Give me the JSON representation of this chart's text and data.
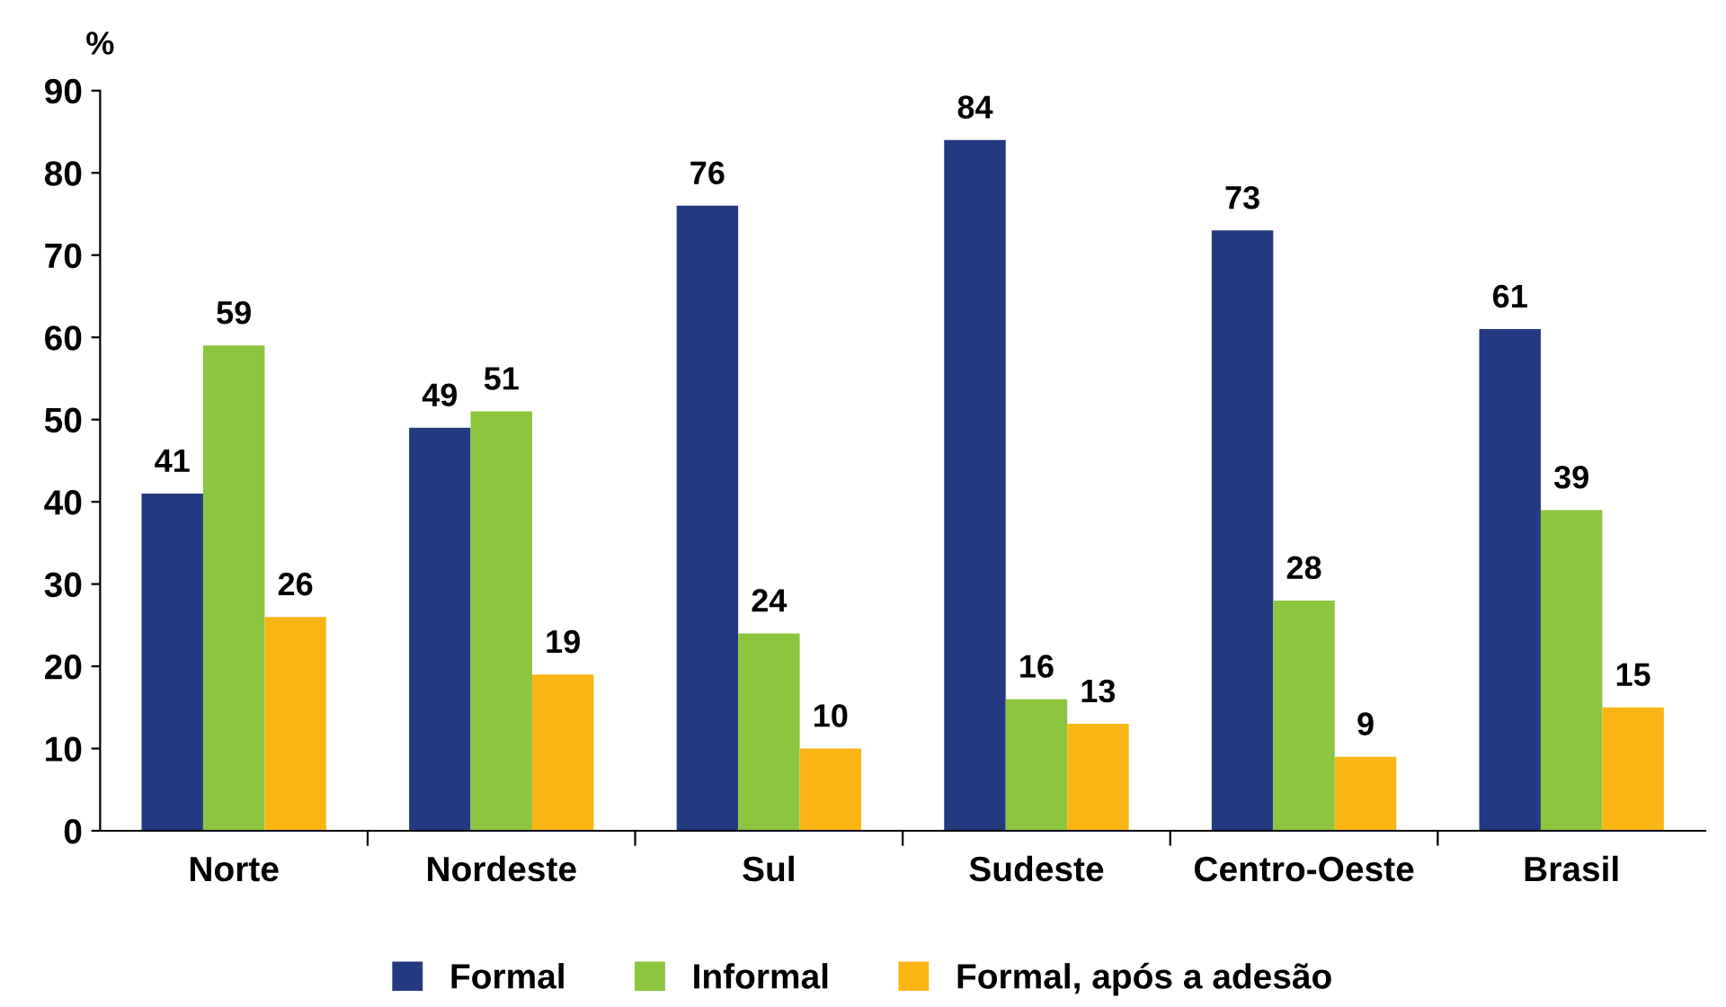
{
  "chart_data": {
    "type": "bar",
    "ylabel": "%",
    "categories": [
      "Norte",
      "Nordeste",
      "Sul",
      "Sudeste",
      "Centro-Oeste",
      "Brasil"
    ],
    "series": [
      {
        "name": "Formal",
        "color": "#233a80",
        "values": [
          41,
          49,
          76,
          84,
          73,
          61
        ]
      },
      {
        "name": "Informal",
        "color": "#8cc63f",
        "values": [
          59,
          51,
          24,
          16,
          28,
          39
        ]
      },
      {
        "name": "Formal, após a adesão",
        "color": "#fbb615",
        "values": [
          26,
          19,
          10,
          13,
          9,
          15
        ]
      }
    ],
    "ylim": [
      0,
      90
    ],
    "yticks": [
      0,
      10,
      20,
      30,
      40,
      50,
      60,
      70,
      80,
      90
    ],
    "grid": false,
    "legend": "bottom",
    "data_labels": true
  }
}
